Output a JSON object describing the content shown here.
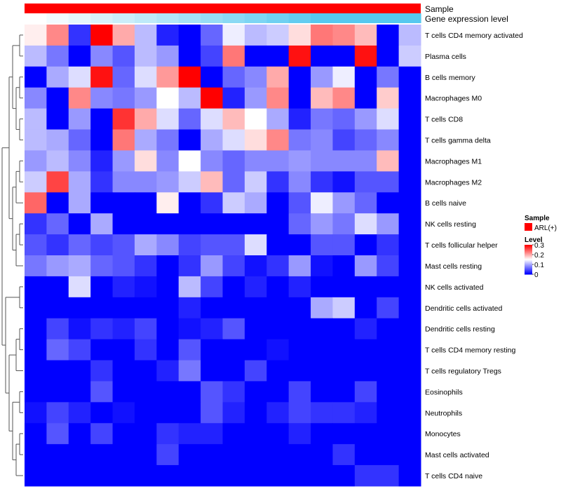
{
  "chart_data": {
    "type": "heatmap",
    "annotation_tracks": [
      {
        "label": "Sample",
        "color": "#ff0000"
      },
      {
        "label": "Gene expression level",
        "gradient": [
          "#ffffff",
          "#56c8ef"
        ]
      }
    ],
    "legend": {
      "sample_title": "Sample",
      "sample_entry": "ARL(+)",
      "sample_color": "#ff0000",
      "level_title": "Level",
      "ticks": [
        "0.3",
        "0.2",
        "0.1",
        "0"
      ],
      "tick_values": [
        0.3,
        0.2,
        0.1,
        0
      ],
      "range": [
        0,
        0.3
      ],
      "colors": {
        "low": "#0000ff",
        "mid": "#ffffff",
        "high": "#ff0000"
      },
      "placement": "right"
    },
    "n_samples": 18,
    "rows": [
      {
        "label": "T cells CD4 memory activated",
        "values": [
          0.16,
          0.22,
          0.03,
          0.3,
          0.2,
          0.11,
          0.02,
          0.0,
          0.06,
          0.14,
          0.11,
          0.12,
          0.17,
          0.23,
          0.22,
          0.19,
          0.0,
          0.11
        ]
      },
      {
        "label": "Plasma cells",
        "values": [
          0.11,
          0.07,
          0.0,
          0.08,
          0.05,
          0.11,
          0.09,
          0.0,
          0.04,
          0.23,
          0.0,
          0.0,
          0.29,
          0.0,
          0.0,
          0.29,
          0.0,
          0.12
        ]
      },
      {
        "label": "B cells memory",
        "values": [
          0.0,
          0.1,
          0.13,
          0.29,
          0.06,
          0.13,
          0.21,
          0.3,
          0.0,
          0.06,
          0.08,
          0.2,
          0.0,
          0.09,
          0.14,
          0.0,
          0.07,
          0.0
        ]
      },
      {
        "label": "Macrophages M0",
        "values": [
          0.08,
          0.0,
          0.22,
          0.08,
          0.07,
          0.09,
          0.15,
          0.11,
          0.3,
          0.02,
          0.09,
          0.22,
          0.0,
          0.19,
          0.22,
          0.0,
          0.18,
          0.0
        ]
      },
      {
        "label": "T cells CD8",
        "values": [
          0.11,
          0.0,
          0.09,
          0.0,
          0.27,
          0.2,
          0.13,
          0.06,
          0.13,
          0.19,
          0.15,
          0.1,
          0.02,
          0.07,
          0.06,
          0.09,
          0.13,
          0.0
        ]
      },
      {
        "label": "T cells gamma delta",
        "values": [
          0.11,
          0.1,
          0.06,
          0.0,
          0.23,
          0.1,
          0.07,
          0.0,
          0.1,
          0.13,
          0.17,
          0.22,
          0.07,
          0.08,
          0.04,
          0.06,
          0.08,
          0.0
        ]
      },
      {
        "label": "Macrophages M1",
        "values": [
          0.09,
          0.11,
          0.08,
          0.02,
          0.09,
          0.17,
          0.08,
          0.15,
          0.08,
          0.06,
          0.08,
          0.08,
          0.09,
          0.08,
          0.08,
          0.08,
          0.19,
          0.0
        ]
      },
      {
        "label": "Macrophages M2",
        "values": [
          0.12,
          0.26,
          0.1,
          0.03,
          0.08,
          0.08,
          0.09,
          0.12,
          0.19,
          0.06,
          0.12,
          0.03,
          0.08,
          0.03,
          0.01,
          0.05,
          0.05,
          0.0
        ]
      },
      {
        "label": "B cells naive",
        "values": [
          0.24,
          0.0,
          0.1,
          0.0,
          0.0,
          0.0,
          0.16,
          0.0,
          0.03,
          0.12,
          0.1,
          0.0,
          0.05,
          0.14,
          0.09,
          0.06,
          0.0,
          0.0
        ]
      },
      {
        "label": "NK cells resting",
        "values": [
          0.03,
          0.06,
          0.0,
          0.1,
          0.0,
          0.0,
          0.0,
          0.0,
          0.0,
          0.0,
          0.0,
          0.0,
          0.06,
          0.09,
          0.07,
          0.13,
          0.09,
          0.0
        ]
      },
      {
        "label": "T cells follicular helper",
        "values": [
          0.05,
          0.03,
          0.06,
          0.04,
          0.05,
          0.1,
          0.08,
          0.04,
          0.05,
          0.05,
          0.13,
          0.0,
          0.0,
          0.05,
          0.05,
          0.0,
          0.03,
          0.0
        ]
      },
      {
        "label": "Mast cells resting",
        "values": [
          0.07,
          0.09,
          0.1,
          0.06,
          0.05,
          0.03,
          0.0,
          0.03,
          0.09,
          0.04,
          0.01,
          0.03,
          0.09,
          0.01,
          0.0,
          0.09,
          0.04,
          0.0
        ]
      },
      {
        "label": "NK cells activated",
        "values": [
          0.0,
          0.0,
          0.13,
          0.0,
          0.02,
          0.01,
          0.0,
          0.11,
          0.04,
          0.0,
          0.02,
          0.0,
          0.02,
          0.0,
          0.0,
          0.0,
          0.0,
          0.0
        ]
      },
      {
        "label": "Dendritic cells activated",
        "values": [
          0.0,
          0.0,
          0.0,
          0.0,
          0.0,
          0.0,
          0.0,
          0.02,
          0.0,
          0.0,
          0.0,
          0.0,
          0.0,
          0.1,
          0.12,
          0.0,
          0.04,
          0.0
        ]
      },
      {
        "label": "Dendritic cells resting",
        "values": [
          0.0,
          0.04,
          0.01,
          0.03,
          0.02,
          0.04,
          0.0,
          0.01,
          0.02,
          0.05,
          0.0,
          0.0,
          0.0,
          0.0,
          0.0,
          0.02,
          0.0,
          0.0
        ]
      },
      {
        "label": "T cells CD4 memory resting",
        "values": [
          0.0,
          0.06,
          0.04,
          0.0,
          0.0,
          0.03,
          0.0,
          0.05,
          0.0,
          0.0,
          0.0,
          0.01,
          0.0,
          0.0,
          0.0,
          0.0,
          0.0,
          0.0
        ]
      },
      {
        "label": "T cells regulatory  Tregs",
        "values": [
          0.0,
          0.0,
          0.0,
          0.03,
          0.0,
          0.0,
          0.02,
          0.07,
          0.0,
          0.0,
          0.04,
          0.0,
          0.0,
          0.0,
          0.0,
          0.0,
          0.0,
          0.0
        ]
      },
      {
        "label": "Eosinophils",
        "values": [
          0.0,
          0.0,
          0.0,
          0.05,
          0.0,
          0.0,
          0.0,
          0.0,
          0.05,
          0.03,
          0.0,
          0.0,
          0.04,
          0.0,
          0.0,
          0.04,
          0.0,
          0.0
        ]
      },
      {
        "label": "Neutrophils",
        "values": [
          0.01,
          0.04,
          0.02,
          0.0,
          0.01,
          0.0,
          0.0,
          0.0,
          0.05,
          0.02,
          0.0,
          0.02,
          0.04,
          0.03,
          0.03,
          0.02,
          0.0,
          0.0
        ]
      },
      {
        "label": "Monocytes",
        "values": [
          0.0,
          0.05,
          0.0,
          0.04,
          0.0,
          0.0,
          0.03,
          0.02,
          0.02,
          0.0,
          0.0,
          0.0,
          0.02,
          0.0,
          0.0,
          0.0,
          0.0,
          0.0
        ]
      },
      {
        "label": "Mast cells activated",
        "values": [
          0.0,
          0.0,
          0.0,
          0.0,
          0.0,
          0.0,
          0.04,
          0.0,
          0.0,
          0.0,
          0.0,
          0.0,
          0.0,
          0.0,
          0.03,
          0.0,
          0.0,
          0.0
        ]
      },
      {
        "label": "T cells CD4 naive",
        "values": [
          0.0,
          0.0,
          0.0,
          0.0,
          0.0,
          0.0,
          0.0,
          0.0,
          0.0,
          0.0,
          0.0,
          0.0,
          0.0,
          0.0,
          0.0,
          0.03,
          0.03,
          0.0
        ]
      }
    ],
    "row_dendrogram": {
      "clusters": [
        [
          [
            0,
            1
          ],
          [
            [
              2,
              3
            ],
            [
              4,
              5
            ]
          ]
        ],
        [
          [
            [
              6,
              7
            ],
            8
          ],
          [
            [
              9,
              10
            ],
            11
          ]
        ],
        [
          [
            12,
            13
          ],
          [
            [
              [
                14,
                15
              ],
              16
            ],
            [
              [
                17,
                18
              ],
              [
                [
                  19,
                  20
                ],
                21
              ]
            ]
          ]
        ]
      ],
      "top_order": [
        [
          0,
          1
        ],
        2
      ]
    }
  }
}
